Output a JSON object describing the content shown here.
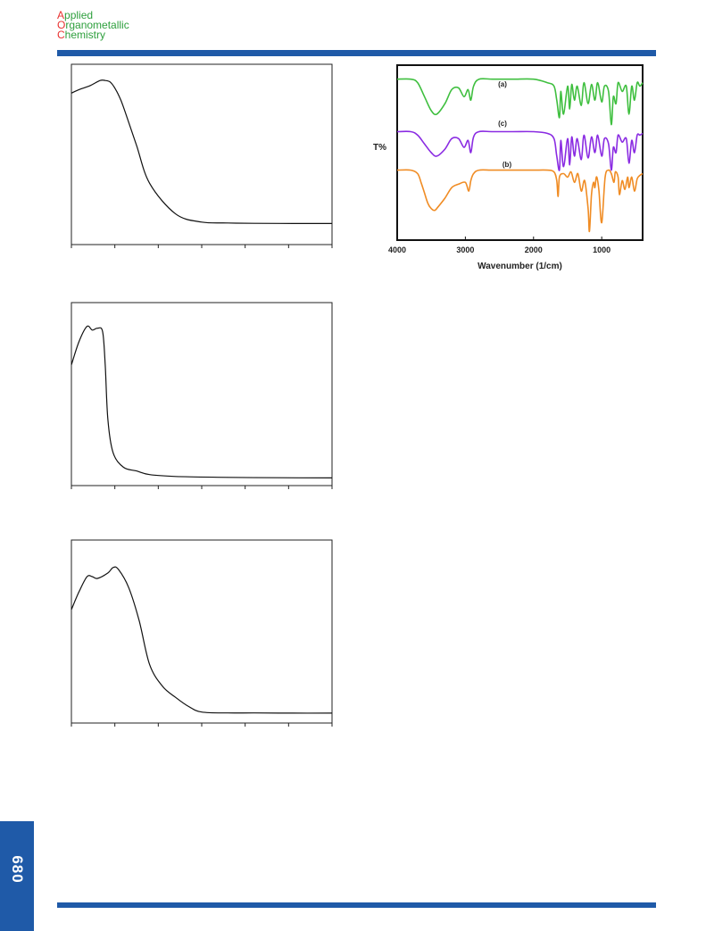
{
  "journal": {
    "logo_lines": [
      {
        "initial": "A",
        "rest": "pplied"
      },
      {
        "initial": "O",
        "rest": "rganometallic"
      },
      {
        "initial": "C",
        "rest": "hemistry"
      }
    ]
  },
  "page_number": "680",
  "colors": {
    "brand_blue": "#1f5aa8",
    "logo_red": "#e8312f",
    "logo_green": "#2d9f3c",
    "series_a": "#3fbf3f",
    "series_c": "#8a2be2",
    "series_b": "#f08c24"
  },
  "uv_panels": [
    {
      "x_tick_count": 7
    },
    {
      "x_tick_count": 7
    },
    {
      "x_tick_count": 7
    }
  ],
  "ir_chart": {
    "ylabel": "T%",
    "xlabel": "Wavenumber (1/cm)",
    "x_ticks": [
      "4000",
      "3000",
      "2000",
      "1000"
    ],
    "series_labels": [
      "(a)",
      "(c)",
      "(b)"
    ]
  },
  "chart_data": [
    {
      "type": "line",
      "title": "",
      "xlabel": "",
      "ylabel": "",
      "series": [
        {
          "x": [
            0,
            3,
            7,
            11,
            13,
            15,
            17,
            19,
            21,
            25,
            30,
            40,
            50,
            60,
            70,
            85,
            100
          ],
          "y": [
            0.84,
            0.86,
            0.88,
            0.91,
            0.91,
            0.9,
            0.86,
            0.8,
            0.72,
            0.55,
            0.34,
            0.17,
            0.125,
            0.12,
            0.118,
            0.117,
            0.117
          ]
        }
      ]
    },
    {
      "type": "line",
      "title": "",
      "xlabel": "",
      "ylabel": "",
      "series": [
        {
          "x": [
            0,
            3,
            6,
            8,
            10,
            12,
            13,
            14,
            16,
            20,
            25,
            30,
            40,
            60,
            80,
            100
          ],
          "y": [
            0.66,
            0.79,
            0.87,
            0.85,
            0.86,
            0.84,
            0.65,
            0.36,
            0.18,
            0.1,
            0.08,
            0.06,
            0.05,
            0.045,
            0.043,
            0.042
          ]
        }
      ]
    },
    {
      "type": "line",
      "title": "",
      "xlabel": "",
      "ylabel": "",
      "series": [
        {
          "x": [
            0,
            3,
            6,
            8,
            10,
            14,
            16,
            18,
            22,
            26,
            30,
            35,
            40,
            45,
            50,
            60,
            70,
            85,
            100
          ],
          "y": [
            0.62,
            0.72,
            0.8,
            0.8,
            0.79,
            0.82,
            0.85,
            0.84,
            0.74,
            0.56,
            0.32,
            0.2,
            0.14,
            0.09,
            0.06,
            0.055,
            0.055,
            0.054,
            0.054
          ]
        }
      ]
    },
    {
      "type": "line",
      "title": "",
      "xlabel": "Wavenumber (1/cm)",
      "ylabel": "T%",
      "xlim": [
        4000,
        400
      ],
      "x_ticks": [
        4000,
        3000,
        2000,
        1000
      ],
      "series": [
        {
          "name": "(a)",
          "x": [
            4000,
            3800,
            3700,
            3600,
            3500,
            3420,
            3300,
            3200,
            3100,
            3020,
            2960,
            2920,
            2880,
            2800,
            2600,
            2300,
            2000,
            1800,
            1700,
            1660,
            1620,
            1600,
            1560,
            1500,
            1470,
            1440,
            1400,
            1360,
            1300,
            1260,
            1200,
            1150,
            1100,
            1060,
            1000,
            960,
            900,
            860,
            830,
            790,
            760,
            700,
            640,
            600,
            560,
            520,
            480,
            440,
            400
          ],
          "y": [
            0.92,
            0.92,
            0.9,
            0.82,
            0.74,
            0.72,
            0.78,
            0.86,
            0.87,
            0.82,
            0.86,
            0.8,
            0.88,
            0.92,
            0.92,
            0.92,
            0.92,
            0.9,
            0.88,
            0.8,
            0.7,
            0.85,
            0.72,
            0.88,
            0.75,
            0.89,
            0.8,
            0.88,
            0.77,
            0.9,
            0.78,
            0.89,
            0.8,
            0.9,
            0.79,
            0.88,
            0.85,
            0.66,
            0.82,
            0.78,
            0.9,
            0.85,
            0.88,
            0.72,
            0.88,
            0.8,
            0.9,
            0.88,
            0.9
          ]
        },
        {
          "name": "(c)",
          "x": [
            4000,
            3800,
            3700,
            3600,
            3500,
            3420,
            3300,
            3200,
            3100,
            3020,
            2960,
            2920,
            2880,
            2800,
            2600,
            2300,
            2000,
            1800,
            1700,
            1660,
            1620,
            1600,
            1560,
            1500,
            1470,
            1440,
            1400,
            1360,
            1300,
            1260,
            1200,
            1150,
            1100,
            1060,
            1000,
            960,
            900,
            860,
            830,
            790,
            760,
            700,
            640,
            600,
            560,
            520,
            480,
            440,
            400
          ],
          "y": [
            0.62,
            0.62,
            0.6,
            0.55,
            0.5,
            0.48,
            0.52,
            0.58,
            0.58,
            0.53,
            0.57,
            0.5,
            0.59,
            0.62,
            0.62,
            0.62,
            0.62,
            0.61,
            0.58,
            0.48,
            0.4,
            0.57,
            0.42,
            0.58,
            0.43,
            0.59,
            0.48,
            0.58,
            0.46,
            0.6,
            0.47,
            0.59,
            0.5,
            0.6,
            0.48,
            0.58,
            0.55,
            0.4,
            0.53,
            0.5,
            0.6,
            0.56,
            0.58,
            0.44,
            0.57,
            0.5,
            0.6,
            0.6,
            0.61
          ]
        },
        {
          "name": "(b)",
          "x": [
            4000,
            3800,
            3700,
            3650,
            3600,
            3550,
            3500,
            3450,
            3400,
            3300,
            3200,
            3100,
            3000,
            2950,
            2920,
            2880,
            2800,
            2600,
            2300,
            2000,
            1800,
            1700,
            1660,
            1640,
            1620,
            1560,
            1500,
            1450,
            1400,
            1350,
            1300,
            1250,
            1200,
            1180,
            1150,
            1120,
            1100,
            1080,
            1060,
            1040,
            1000,
            950,
            900,
            860,
            820,
            800,
            760,
            740,
            700,
            660,
            620,
            600,
            560,
            520,
            480,
            440,
            400
          ],
          "y": [
            0.4,
            0.4,
            0.38,
            0.33,
            0.27,
            0.21,
            0.18,
            0.17,
            0.19,
            0.24,
            0.3,
            0.32,
            0.33,
            0.28,
            0.34,
            0.38,
            0.4,
            0.4,
            0.4,
            0.4,
            0.4,
            0.39,
            0.34,
            0.25,
            0.36,
            0.38,
            0.36,
            0.39,
            0.33,
            0.38,
            0.28,
            0.34,
            0.18,
            0.05,
            0.26,
            0.33,
            0.3,
            0.36,
            0.34,
            0.28,
            0.1,
            0.36,
            0.4,
            0.38,
            0.33,
            0.39,
            0.36,
            0.26,
            0.34,
            0.29,
            0.36,
            0.3,
            0.36,
            0.28,
            0.35,
            0.37,
            0.38
          ]
        }
      ]
    }
  ]
}
